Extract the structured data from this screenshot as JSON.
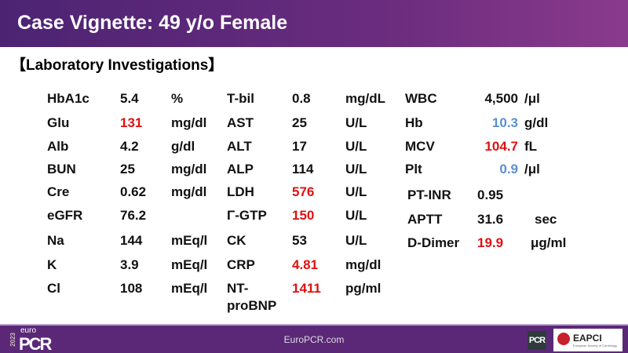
{
  "header": {
    "title": "Case Vignette: 49 y/o Female"
  },
  "section_title": "【Laboratory Investigations】",
  "colors": {
    "normal": "#111111",
    "high": "#e01010",
    "low": "#5b8fd0"
  },
  "columns": [
    [
      {
        "label": "HbA1c",
        "value": "5.4",
        "unit": "%",
        "flag": "normal"
      },
      {
        "label": "Glu",
        "value": "131",
        "unit": "mg/dl",
        "flag": "high"
      },
      {
        "label": "Alb",
        "value": "4.2",
        "unit": "g/dl",
        "flag": "normal"
      },
      {
        "label": "BUN",
        "value": "25",
        "unit": "mg/dl",
        "flag": "normal"
      },
      {
        "label": "Cre",
        "value": "0.62",
        "unit": "mg/dl",
        "flag": "normal"
      },
      {
        "label": "eGFR",
        "value": "76.2",
        "unit": "",
        "flag": "normal"
      },
      {
        "label": "Na",
        "value": "144",
        "unit": "mEq/l",
        "flag": "normal"
      },
      {
        "label": "K",
        "value": "3.9",
        "unit": "mEq/l",
        "flag": "normal"
      },
      {
        "label": "Cl",
        "value": "108",
        "unit": "mEq/l",
        "flag": "normal"
      }
    ],
    [
      {
        "label": "T-bil",
        "value": "0.8",
        "unit": "mg/dL",
        "flag": "normal"
      },
      {
        "label": "AST",
        "value": "25",
        "unit": "U/L",
        "flag": "normal"
      },
      {
        "label": "ALT",
        "value": "17",
        "unit": "U/L",
        "flag": "normal"
      },
      {
        "label": "ALP",
        "value": "114",
        "unit": "U/L",
        "flag": "normal"
      },
      {
        "label": "LDH",
        "value": "576",
        "unit": "U/L",
        "flag": "high"
      },
      {
        "label": "Γ-GTP",
        "value": "150",
        "unit": "U/L",
        "flag": "high"
      },
      {
        "label": "CK",
        "value": "53",
        "unit": "U/L",
        "flag": "normal"
      },
      {
        "label": "CRP",
        "value": "4.81",
        "unit": "mg/dl",
        "flag": "high"
      },
      {
        "label": "NT-\nproBNP",
        "value": "1411",
        "unit": "pg/ml",
        "flag": "high"
      }
    ],
    [
      {
        "label": "WBC",
        "value": "4,500",
        "unit": "/μl",
        "flag": "normal"
      },
      {
        "label": "Hb",
        "value": "10.3",
        "unit": "g/dl",
        "flag": "low"
      },
      {
        "label": "MCV",
        "value": "104.7",
        "unit": "fL",
        "flag": "high"
      },
      {
        "label": "Plt",
        "value": "0.9",
        "unit": "/μl",
        "flag": "low"
      },
      {
        "label": "PT-INR",
        "value": "0.95",
        "unit": "",
        "flag": "normal"
      },
      {
        "label": "APTT",
        "value": "31.6",
        "unit": "sec",
        "flag": "normal"
      },
      {
        "label": "D-Dimer",
        "value": "19.9",
        "unit": "μg/ml",
        "flag": "high"
      }
    ]
  ],
  "footer": {
    "url": "EuroPCR.com",
    "logo_year": "2023",
    "logo_euro": "euro",
    "logo_pcr": "PCR",
    "badge": "PCR",
    "eapci": "EAPCI",
    "eapci_sub": "European Society of Cardiology"
  }
}
